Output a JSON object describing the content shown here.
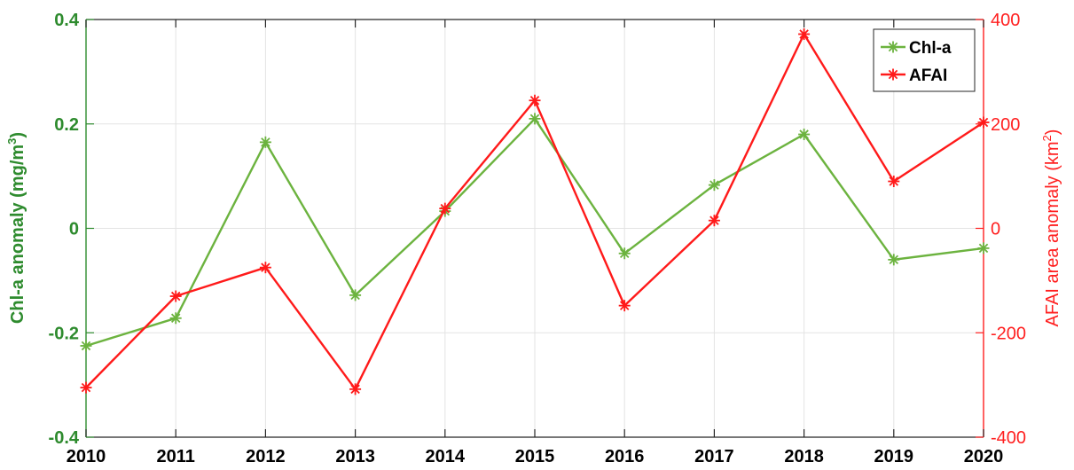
{
  "chart_data": {
    "type": "line",
    "title": "",
    "x": [
      2010,
      2011,
      2012,
      2013,
      2014,
      2015,
      2016,
      2017,
      2018,
      2019,
      2020
    ],
    "xlabel": "",
    "xlim": [
      2010,
      2020
    ],
    "grid": true,
    "legend_position": "top-right",
    "y_left": {
      "label": "Chl-a anomaly (mg/m",
      "label_superscript": "3",
      "label_suffix": ")",
      "lim": [
        -0.4,
        0.4
      ],
      "ticks": [
        -0.4,
        -0.2,
        0,
        0.2,
        0.4
      ],
      "tick_labels": [
        "-0.4",
        "-0.2",
        "0",
        "0.2",
        "0.4"
      ],
      "color": "#2e8b2e"
    },
    "y_right": {
      "label": "AFAI area anomaly (km",
      "label_superscript": "2",
      "label_suffix": ")",
      "lim": [
        -400,
        400
      ],
      "ticks": [
        -400,
        -200,
        0,
        200,
        400
      ],
      "tick_labels": [
        "-400",
        "-200",
        "0",
        "200",
        "400"
      ],
      "color": "#ff2020"
    },
    "series": [
      {
        "name": "Chl-a",
        "axis": "left",
        "color": "#6cb33f",
        "marker": "asterisk",
        "values": [
          -0.225,
          -0.172,
          0.165,
          -0.128,
          0.033,
          0.21,
          -0.048,
          0.083,
          0.18,
          -0.06,
          -0.038
        ]
      },
      {
        "name": "AFAI",
        "axis": "right",
        "color": "#ff1a1a",
        "marker": "asterisk",
        "values": [
          -305,
          -130,
          -75,
          -308,
          38,
          245,
          -148,
          15,
          372,
          90,
          203
        ]
      }
    ]
  }
}
